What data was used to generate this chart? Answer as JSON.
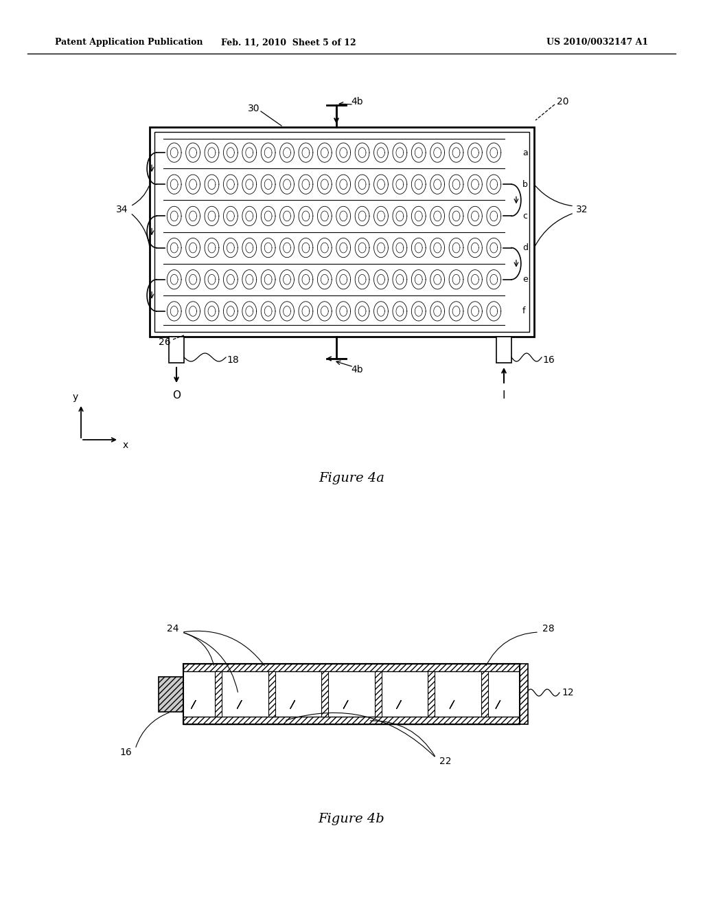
{
  "bg_color": "#ffffff",
  "line_color": "#000000",
  "header_text": "Patent Application Publication",
  "header_date": "Feb. 11, 2010  Sheet 5 of 12",
  "header_patent": "US 2010/0032147 A1",
  "fig4a_title": "Figure 4a",
  "fig4b_title": "Figure 4b"
}
